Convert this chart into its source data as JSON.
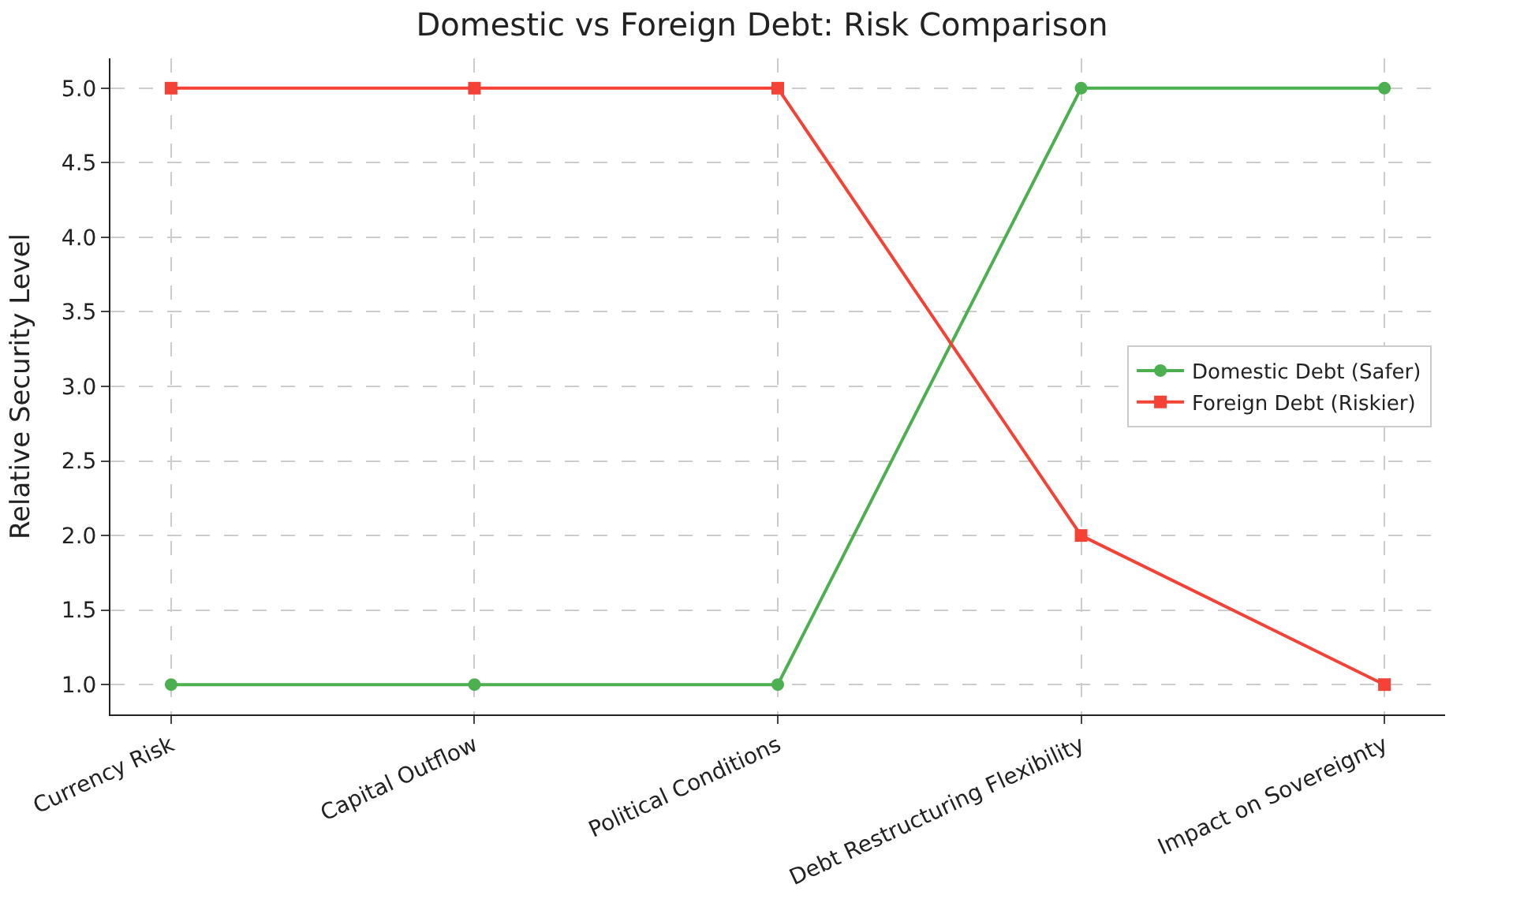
{
  "chart_data": {
    "type": "line",
    "title": "Domestic vs Foreign Debt: Risk Comparison",
    "ylabel": "Relative Security Level",
    "categories": [
      "Currency Risk",
      "Capital Outflow",
      "Political Conditions",
      "Debt Restructuring Flexibility",
      "Impact on Sovereignty"
    ],
    "series": [
      {
        "name": "Domestic Debt (Safer)",
        "color": "#4caf50",
        "marker": "circle",
        "values": [
          1,
          1,
          1,
          5,
          5
        ]
      },
      {
        "name": "Foreign Debt (Riskier)",
        "color": "#f44336",
        "marker": "square",
        "values": [
          5,
          5,
          5,
          2,
          1
        ]
      }
    ],
    "ylim": [
      0.8,
      5.2
    ],
    "yticks": [
      {
        "value": 1,
        "label": "1.0"
      },
      {
        "value": 1.5,
        "label": "1.5"
      },
      {
        "value": 2,
        "label": "2.0"
      },
      {
        "value": 2.5,
        "label": "2.5"
      },
      {
        "value": 3,
        "label": "3.0"
      },
      {
        "value": 3.5,
        "label": "3.5"
      },
      {
        "value": 4,
        "label": "4.0"
      },
      {
        "value": 4.5,
        "label": "4.5"
      },
      {
        "value": 5,
        "label": "5.0"
      }
    ],
    "grid": true,
    "legend": "right",
    "line_style": "solid"
  }
}
